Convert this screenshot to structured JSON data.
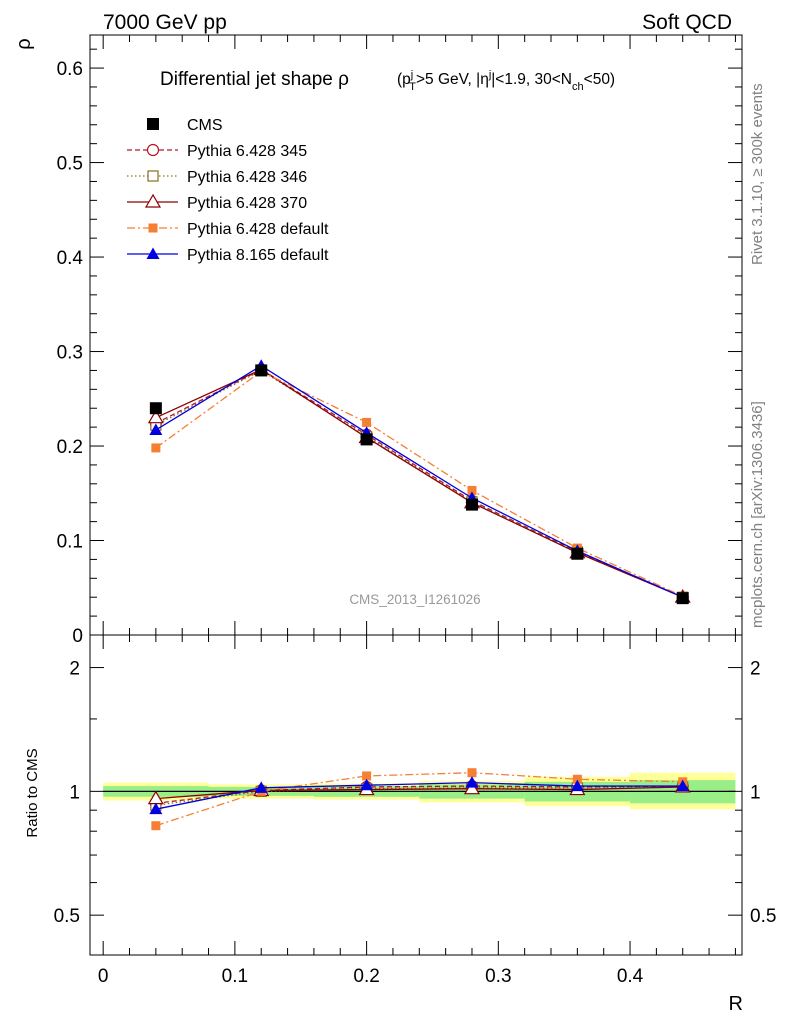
{
  "header": {
    "left": "7000 GeV pp",
    "right": "Soft QCD"
  },
  "side_labels": {
    "rivet": "Rivet 3.1.10, ≥ 300k events",
    "mcplots": "mcplots.cern.ch [arXiv:1306.3436]"
  },
  "title": {
    "main": "Differential jet shape ρ",
    "cuts": "(p_T^j > 5 GeV, |η^j| < 1.9, 30 < N_ch < 50)",
    "cuts_parts": {
      "open": "(p",
      "t_sup": "j",
      "t_sub": "T",
      "a": ">5 GeV, |η",
      "eta_sup": "j",
      "b": "|<1.9, 30<N",
      "n_sub": "ch",
      "c": "<50)"
    }
  },
  "watermark": "CMS_2013_I1261026",
  "colors": {
    "cms": "#000000",
    "p345": "#b2182b",
    "p346": "#8c6d1f",
    "p370": "#8b0000",
    "pdef": "#f57f32",
    "p8": "#0000e0",
    "band_yellow": "#ffff99",
    "band_green": "#99ee88"
  },
  "chart_data": [
    {
      "type": "line",
      "panel": "main",
      "xlabel": "R",
      "ylabel": "ρ",
      "xlim": [
        -0.01,
        0.485
      ],
      "ylim": [
        0,
        0.635
      ],
      "yticks": [
        0,
        0.1,
        0.2,
        0.3,
        0.4,
        0.5,
        0.6
      ],
      "ytick_labels": [
        "0",
        "0.1",
        "0.2",
        "0.3",
        "0.4",
        "0.5",
        "0.6"
      ],
      "x": [
        0.04,
        0.12,
        0.2,
        0.28,
        0.36,
        0.44
      ],
      "series": [
        {
          "name": "CMS",
          "values": [
            0.24,
            0.28,
            0.207,
            0.138,
            0.086,
            0.039
          ],
          "marker": "square-filled",
          "dash": "none"
        },
        {
          "name": "Pythia 6.428 345",
          "values": [
            0.224,
            0.281,
            0.212,
            0.142,
            0.088,
            0.04
          ],
          "marker": "circle-open",
          "dash": "dashed"
        },
        {
          "name": "Pythia 6.428 346",
          "values": [
            0.222,
            0.28,
            0.21,
            0.141,
            0.088,
            0.04
          ],
          "marker": "square-open",
          "dash": "dotted"
        },
        {
          "name": "Pythia 6.428 370",
          "values": [
            0.23,
            0.281,
            0.209,
            0.14,
            0.087,
            0.04
          ],
          "marker": "triangle-open",
          "dash": "solid"
        },
        {
          "name": "Pythia 6.428 default",
          "values": [
            0.198,
            0.279,
            0.225,
            0.153,
            0.092,
            0.041
          ],
          "marker": "square-small-filled",
          "dash": "dashdot"
        },
        {
          "name": "Pythia 8.165 default",
          "values": [
            0.217,
            0.285,
            0.214,
            0.145,
            0.089,
            0.04
          ],
          "marker": "triangle-filled",
          "dash": "solid"
        }
      ]
    },
    {
      "type": "line",
      "panel": "ratio",
      "xlabel": "R",
      "ylabel": "Ratio to CMS",
      "xlim": [
        -0.01,
        0.485
      ],
      "ylim": [
        0.4,
        2.4
      ],
      "ylog": true,
      "yticks": [
        0.5,
        1,
        2
      ],
      "ytick_labels": [
        "0.5",
        "1",
        "2"
      ],
      "xticks": [
        0,
        0.1,
        0.2,
        0.3,
        0.4
      ],
      "xtick_labels": [
        "0",
        "0.1",
        "0.2",
        "0.3",
        "0.4"
      ],
      "x": [
        0.04,
        0.12,
        0.2,
        0.28,
        0.36,
        0.44
      ],
      "bin_edges": [
        0.0,
        0.08,
        0.16,
        0.24,
        0.32,
        0.4,
        0.48
      ],
      "band_yellow": [
        [
          0.95,
          1.05
        ],
        [
          0.96,
          1.04
        ],
        [
          0.955,
          1.045
        ],
        [
          0.94,
          1.06
        ],
        [
          0.92,
          1.085
        ],
        [
          0.905,
          1.11
        ]
      ],
      "band_green": [
        [
          0.97,
          1.03
        ],
        [
          0.975,
          1.025
        ],
        [
          0.97,
          1.03
        ],
        [
          0.96,
          1.04
        ],
        [
          0.945,
          1.055
        ],
        [
          0.935,
          1.065
        ]
      ],
      "series": [
        {
          "name": "Pythia 6.428 345",
          "values": [
            0.935,
            1.005,
            1.025,
            1.03,
            1.025,
            1.03
          ]
        },
        {
          "name": "Pythia 6.428 346",
          "values": [
            0.925,
            1.0,
            1.015,
            1.02,
            1.02,
            1.025
          ]
        },
        {
          "name": "Pythia 6.428 370",
          "values": [
            0.96,
            1.005,
            1.01,
            1.015,
            1.01,
            1.025
          ]
        },
        {
          "name": "Pythia 6.428 default",
          "values": [
            0.825,
            1.0,
            1.09,
            1.11,
            1.07,
            1.055
          ]
        },
        {
          "name": "Pythia 8.165 default",
          "values": [
            0.905,
            1.02,
            1.035,
            1.05,
            1.03,
            1.03
          ]
        }
      ]
    }
  ]
}
